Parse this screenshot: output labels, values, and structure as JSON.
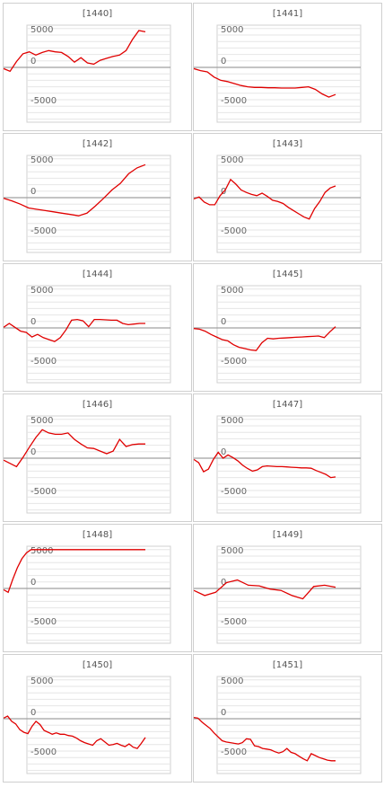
{
  "chart_data": [
    {
      "type": "line",
      "title": "[1440]",
      "yticks": [
        "5000",
        "0",
        "-5000"
      ],
      "ylim": [
        -6500,
        6000
      ],
      "x": [
        0,
        1,
        2,
        3,
        4,
        5,
        6,
        7,
        8,
        9,
        10,
        11,
        12,
        13,
        14,
        15,
        16,
        17,
        18,
        19,
        20,
        21,
        22
      ],
      "series": [
        {
          "values": [
            -200,
            -600,
            900,
            2100,
            2400,
            1900,
            2300,
            2600,
            2400,
            2300,
            1700,
            800,
            1500,
            700,
            500,
            1100,
            1400,
            1700,
            1900,
            2600,
            4300,
            5700,
            5500
          ]
        }
      ],
      "color": "#e00000"
    },
    {
      "type": "line",
      "title": "[1441]",
      "yticks": [
        "5000",
        "0",
        "-5000"
      ],
      "ylim": [
        -6500,
        6000
      ],
      "x": [
        0,
        1,
        2,
        3,
        4,
        5,
        6,
        7,
        8,
        9,
        10,
        11,
        12,
        13,
        14,
        15,
        16,
        17,
        18,
        19,
        20,
        21
      ],
      "series": [
        {
          "values": [
            -200,
            -500,
            -700,
            -1500,
            -2000,
            -2200,
            -2500,
            -2800,
            -3000,
            -3100,
            -3100,
            -3150,
            -3150,
            -3200,
            -3200,
            -3200,
            -3100,
            -3000,
            -3400,
            -4100,
            -4600,
            -4200
          ]
        }
      ],
      "color": "#e00000"
    },
    {
      "type": "line",
      "title": "[1442]",
      "yticks": [
        "5000",
        "0",
        "-5000"
      ],
      "ylim": [
        -6500,
        6000
      ],
      "x": [
        0,
        1,
        2,
        3,
        4,
        5,
        6,
        7,
        8,
        9,
        10,
        11,
        12,
        13,
        14,
        15,
        16,
        17
      ],
      "series": [
        {
          "values": [
            -100,
            -500,
            -1000,
            -1600,
            -1800,
            -2000,
            -2200,
            -2400,
            -2600,
            -2800,
            -2400,
            -1300,
            -100,
            1200,
            2200,
            3700,
            4600,
            5100
          ]
        }
      ],
      "color": "#e00000"
    },
    {
      "type": "line",
      "title": "[1443]",
      "yticks": [
        "5000",
        "0",
        "-5000"
      ],
      "ylim": [
        -6500,
        6000
      ],
      "x": [
        0,
        1,
        2,
        3,
        4,
        5,
        6,
        7,
        8,
        9,
        10,
        11,
        12,
        13,
        14,
        15,
        16,
        17,
        18,
        19,
        20,
        21,
        22,
        23,
        24,
        25,
        26,
        27
      ],
      "series": [
        {
          "values": [
            -200,
            100,
            -700,
            -1100,
            -1100,
            300,
            1200,
            2800,
            2100,
            1200,
            800,
            500,
            300,
            700,
            200,
            -400,
            -600,
            -900,
            -1500,
            -2000,
            -2500,
            -3000,
            -3300,
            -1700,
            -600,
            800,
            1500,
            1800
          ]
        }
      ],
      "color": "#e00000"
    },
    {
      "type": "line",
      "title": "[1444]",
      "yticks": [
        "5000",
        "0",
        "-5000"
      ],
      "ylim": [
        -6500,
        6000
      ],
      "x": [
        0,
        1,
        2,
        3,
        4,
        5,
        6,
        7,
        8,
        9,
        10,
        11,
        12,
        13,
        14,
        15,
        16,
        17,
        18,
        19,
        20,
        21,
        22,
        23,
        24,
        25
      ],
      "series": [
        {
          "values": [
            100,
            700,
            100,
            -500,
            -700,
            -1400,
            -1000,
            -1500,
            -1800,
            -2100,
            -1500,
            -300,
            1200,
            1300,
            1100,
            200,
            1300,
            1300,
            1250,
            1200,
            1200,
            700,
            500,
            600,
            700,
            700
          ]
        }
      ],
      "color": "#e00000"
    },
    {
      "type": "line",
      "title": "[1445]",
      "yticks": [
        "5000",
        "0",
        "-5000"
      ],
      "ylim": [
        -6500,
        6000
      ],
      "x": [
        0,
        1,
        2,
        3,
        4,
        5,
        6,
        7,
        8,
        9,
        10,
        11,
        12,
        13,
        14,
        15,
        16,
        17,
        18,
        19,
        20,
        21,
        22,
        23,
        24,
        25
      ],
      "series": [
        {
          "values": [
            -100,
            -200,
            -500,
            -1000,
            -1400,
            -1800,
            -2000,
            -2600,
            -3000,
            -3200,
            -3400,
            -3500,
            -2300,
            -1600,
            -1700,
            -1600,
            -1550,
            -1500,
            -1450,
            -1400,
            -1350,
            -1300,
            -1250,
            -1500,
            -600,
            200
          ]
        }
      ],
      "color": "#e00000"
    },
    {
      "type": "line",
      "title": "[1446]",
      "yticks": [
        "5000",
        "0",
        "-5000"
      ],
      "ylim": [
        -6500,
        6000
      ],
      "x": [
        0,
        1,
        2,
        3,
        4,
        5,
        6,
        7,
        8,
        9,
        10,
        11,
        12,
        13,
        14,
        15,
        16,
        17,
        18,
        19,
        20,
        21,
        22
      ],
      "series": [
        {
          "values": [
            -300,
            -800,
            -1300,
            100,
            1700,
            3200,
            4400,
            3900,
            3700,
            3700,
            3900,
            2900,
            2200,
            1600,
            1500,
            1100,
            700,
            1100,
            2900,
            1800,
            2100,
            2200,
            2200
          ]
        }
      ],
      "color": "#e00000"
    },
    {
      "type": "line",
      "title": "[1447]",
      "yticks": [
        "5000",
        "0",
        "-5000"
      ],
      "ylim": [
        -6500,
        6000
      ],
      "x": [
        0,
        1,
        2,
        3,
        4,
        5,
        6,
        7,
        8,
        9,
        10,
        11,
        12,
        13,
        14,
        15,
        16,
        17,
        18,
        19,
        20,
        21,
        22,
        23,
        24,
        25,
        26,
        27,
        28,
        29
      ],
      "series": [
        {
          "values": [
            -200,
            -700,
            -2100,
            -1700,
            -200,
            900,
            0,
            500,
            100,
            -400,
            -1100,
            -1600,
            -2000,
            -1800,
            -1300,
            -1200,
            -1250,
            -1300,
            -1300,
            -1350,
            -1400,
            -1450,
            -1500,
            -1500,
            -1550,
            -1900,
            -2200,
            -2500,
            -3000,
            -2900
          ]
        }
      ],
      "color": "#e00000"
    },
    {
      "type": "line",
      "title": "[1448]",
      "yticks": [
        "5000",
        "0",
        "-5000"
      ],
      "ylim": [
        -6500,
        6000
      ],
      "x": [
        0,
        1,
        2,
        3,
        4,
        5,
        6,
        7,
        8,
        9,
        10,
        11,
        12,
        13,
        14,
        15,
        16,
        17,
        18,
        19,
        20,
        21,
        22,
        23,
        24,
        25,
        26,
        27,
        28,
        29,
        30,
        31
      ],
      "series": [
        {
          "values": [
            -200,
            -600,
            1400,
            3200,
            4600,
            5500,
            6000,
            6000,
            6000,
            6000,
            6000,
            6000,
            6000,
            6000,
            6000,
            6000,
            6000,
            6000,
            6000,
            6000,
            6000,
            6000,
            6000,
            6000,
            6000,
            6000,
            6000,
            6000,
            6000,
            6000,
            6000,
            6000
          ]
        }
      ],
      "color": "#e00000"
    },
    {
      "type": "line",
      "title": "[1449]",
      "yticks": [
        "5000",
        "0",
        "-5000"
      ],
      "ylim": [
        -6500,
        6000
      ],
      "x": [
        0,
        1,
        2,
        3,
        4,
        5,
        6,
        7,
        8,
        9,
        10,
        11,
        12,
        13
      ],
      "series": [
        {
          "values": [
            -300,
            -1100,
            -600,
            900,
            1300,
            500,
            400,
            -100,
            -300,
            -1100,
            -1600,
            300,
            500,
            200
          ]
        }
      ],
      "color": "#e00000"
    },
    {
      "type": "line",
      "title": "[1450]",
      "yticks": [
        "5000",
        "0",
        "-5000"
      ],
      "ylim": [
        -6500,
        6000
      ],
      "x": [
        0,
        1,
        2,
        3,
        4,
        5,
        6,
        7,
        8,
        9,
        10,
        11,
        12,
        13,
        14,
        15,
        16,
        17,
        18,
        19,
        20,
        21,
        22,
        23,
        24,
        25,
        26,
        27,
        28,
        29,
        30,
        31,
        32,
        33,
        34,
        35
      ],
      "series": [
        {
          "values": [
            100,
            400,
            -400,
            -800,
            -1700,
            -2100,
            -2300,
            -1200,
            -400,
            -900,
            -1800,
            -2100,
            -2400,
            -2200,
            -2400,
            -2400,
            -2600,
            -2700,
            -3000,
            -3400,
            -3700,
            -3900,
            -4100,
            -3400,
            -3100,
            -3600,
            -4100,
            -4000,
            -3800,
            -4100,
            -4300,
            -3900,
            -4400,
            -4600,
            -3800,
            -2900
          ]
        }
      ],
      "color": "#e00000"
    },
    {
      "type": "line",
      "title": "[1451]",
      "yticks": [
        "5000",
        "0",
        "-5000"
      ],
      "ylim": [
        -6500,
        6000
      ],
      "x": [
        0,
        1,
        2,
        3,
        4,
        5,
        6,
        7,
        8,
        9,
        10,
        11,
        12,
        13,
        14,
        15,
        16,
        17,
        18,
        19,
        20,
        21,
        22,
        23,
        24,
        25,
        26,
        27,
        28,
        29,
        30,
        31,
        32,
        33,
        34,
        35
      ],
      "series": [
        {
          "values": [
            200,
            100,
            -500,
            -1000,
            -1500,
            -2200,
            -2800,
            -3400,
            -3600,
            -3700,
            -3800,
            -3900,
            -3700,
            -3100,
            -3200,
            -4200,
            -4300,
            -4600,
            -4700,
            -4800,
            -5100,
            -5300,
            -5100,
            -4600,
            -5200,
            -5400,
            -5800,
            -6200,
            -6500,
            -5400,
            -5700,
            -6000,
            -6200,
            -6400,
            -6500,
            -6500
          ]
        }
      ],
      "color": "#e00000"
    }
  ]
}
